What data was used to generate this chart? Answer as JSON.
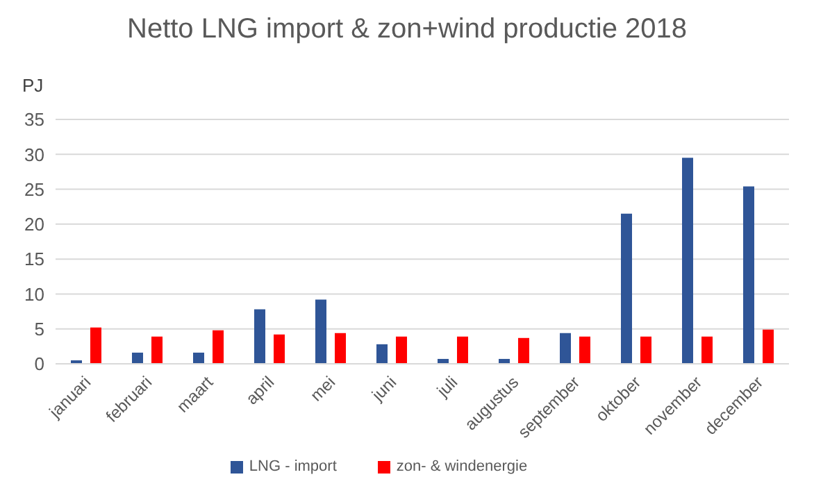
{
  "chart_data": {
    "type": "bar",
    "title": "Netto LNG import & zon+wind productie 2018",
    "ylabel": "PJ",
    "categories": [
      "januari",
      "februari",
      "maart",
      "april",
      "mei",
      "juni",
      "juli",
      "augustus",
      "september",
      "oktober",
      "november",
      "december"
    ],
    "series": [
      {
        "name": "LNG - import",
        "color": "#2f5597",
        "values": [
          0.5,
          1.6,
          1.6,
          7.8,
          9.2,
          2.8,
          0.7,
          0.7,
          4.4,
          21.5,
          29.5,
          25.4
        ]
      },
      {
        "name": "zon- & windenergie",
        "color": "#ff0000",
        "values": [
          5.2,
          3.9,
          4.8,
          4.2,
          4.4,
          3.9,
          3.9,
          3.7,
          3.9,
          3.9,
          3.9,
          4.9
        ]
      }
    ],
    "ylim": [
      0,
      35
    ],
    "yticks": [
      0,
      5,
      10,
      15,
      20,
      25,
      30,
      35
    ],
    "grid": "y",
    "legend": "bottom"
  }
}
